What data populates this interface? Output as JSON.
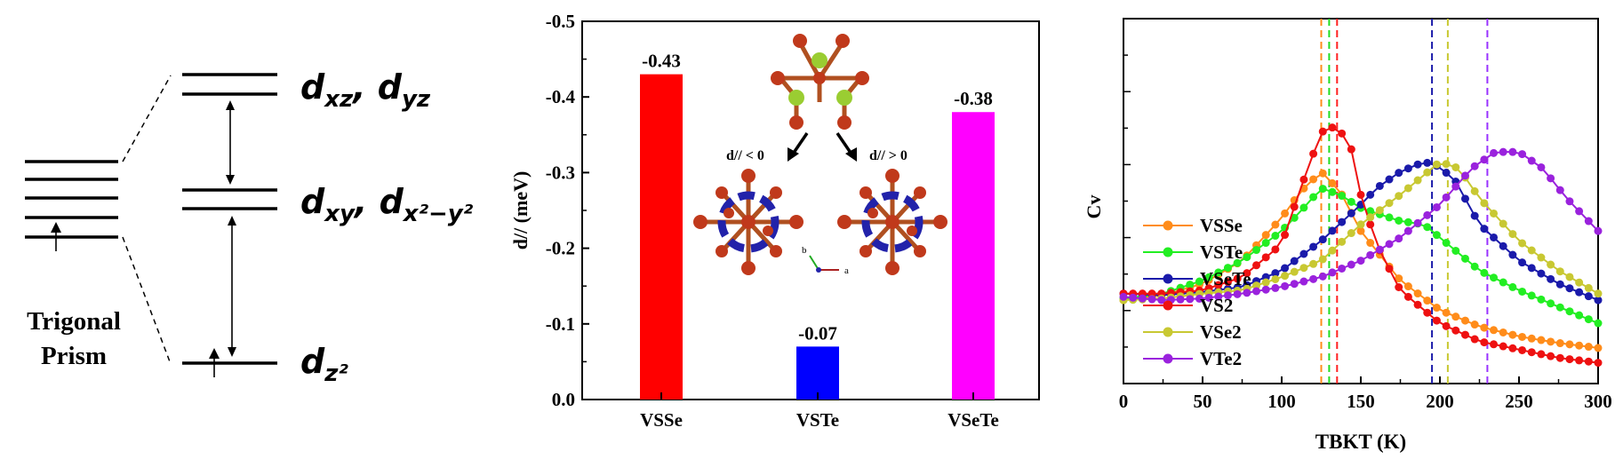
{
  "panel_a": {
    "prism_label_1": "Trigonal",
    "prism_label_2": "Prism",
    "level_labels": [
      {
        "base": "d",
        "sub1": "xz",
        "sep": ", ",
        "base2": "d",
        "sub2": "yz"
      },
      {
        "base": "d",
        "sub1": "xy",
        "sep": ", ",
        "base2": "d",
        "sub2": "x²−y²"
      },
      {
        "base": "d",
        "sub1": "z²",
        "sep": "",
        "base2": "",
        "sub2": ""
      }
    ]
  },
  "panel_b_inset": {
    "left_label": "d// < 0",
    "right_label": "d// > 0",
    "axis_b": "b",
    "axis_a": "a"
  },
  "chart_data": [
    {
      "type": "bar",
      "categories": [
        "VSSe",
        "VSTe",
        "VSeTe"
      ],
      "values": [
        -0.43,
        -0.07,
        -0.38
      ],
      "data_labels": [
        "-0.43",
        "-0.07",
        "-0.38"
      ],
      "colors": [
        "#ff0000",
        "#0000ff",
        "#ff00ff"
      ],
      "ylabel": "d// (meV)",
      "ylim": [
        0.0,
        -0.5
      ],
      "yticks": [
        "0.0",
        "-0.1",
        "-0.2",
        "-0.3",
        "-0.4",
        "-0.5"
      ],
      "axis_inverted": true
    },
    {
      "type": "line",
      "xlabel": "TBKT (K)",
      "ylabel": "Cv",
      "xlim": [
        0,
        300
      ],
      "xticks": [
        "0",
        "50",
        "100",
        "150",
        "200",
        "250",
        "300"
      ],
      "legend_position": "left",
      "vlines": [
        {
          "x": 125,
          "color": "#ff8c1a"
        },
        {
          "x": 130,
          "color": "#22dd22"
        },
        {
          "x": 135,
          "color": "#ff2222"
        },
        {
          "x": 195,
          "color": "#1a1aaa"
        },
        {
          "x": 205,
          "color": "#c8c832"
        },
        {
          "x": 230,
          "color": "#9933ff"
        }
      ],
      "series": [
        {
          "name": "VSSe",
          "color": "#ff8c1a",
          "x": [
            0,
            25,
            50,
            75,
            100,
            112,
            125,
            137,
            150,
            175,
            200,
            225,
            250,
            275,
            300
          ],
          "y": [
            0.21,
            0.225,
            0.26,
            0.33,
            0.46,
            0.54,
            0.6,
            0.54,
            0.42,
            0.27,
            0.18,
            0.13,
            0.1,
            0.08,
            0.065
          ]
        },
        {
          "name": "VSTe",
          "color": "#22ee22",
          "x": [
            0,
            25,
            50,
            75,
            100,
            112,
            125,
            137,
            150,
            175,
            190,
            200,
            225,
            250,
            275,
            300
          ],
          "y": [
            0.215,
            0.23,
            0.27,
            0.33,
            0.42,
            0.48,
            0.55,
            0.53,
            0.49,
            0.45,
            0.44,
            0.4,
            0.3,
            0.24,
            0.19,
            0.14
          ]
        },
        {
          "name": "VSeTe",
          "color": "#1a1aaa",
          "x": [
            0,
            25,
            50,
            75,
            100,
            125,
            150,
            160,
            175,
            190,
            200,
            210,
            225,
            250,
            275,
            300
          ],
          "y": [
            0.23,
            0.225,
            0.235,
            0.25,
            0.3,
            0.39,
            0.5,
            0.55,
            0.6,
            0.63,
            0.615,
            0.57,
            0.44,
            0.33,
            0.26,
            0.21
          ]
        },
        {
          "name": "VS2",
          "color": "#ee1111",
          "x": [
            0,
            25,
            50,
            75,
            100,
            112,
            125,
            135,
            145,
            150,
            160,
            175,
            200,
            225,
            250,
            275,
            300
          ],
          "y": [
            0.23,
            0.23,
            0.24,
            0.28,
            0.38,
            0.55,
            0.72,
            0.74,
            0.66,
            0.53,
            0.38,
            0.24,
            0.14,
            0.085,
            0.06,
            0.035,
            0.02
          ]
        },
        {
          "name": "VSe2",
          "color": "#c8c832",
          "x": [
            0,
            25,
            50,
            75,
            100,
            125,
            150,
            175,
            200,
            212,
            225,
            250,
            275,
            300
          ],
          "y": [
            0.21,
            0.215,
            0.23,
            0.24,
            0.28,
            0.33,
            0.44,
            0.53,
            0.63,
            0.61,
            0.52,
            0.39,
            0.3,
            0.23
          ]
        },
        {
          "name": "VTe2",
          "color": "#9a22dd",
          "x": [
            0,
            25,
            50,
            75,
            100,
            125,
            150,
            175,
            200,
            220,
            235,
            250,
            265,
            280,
            300
          ],
          "y": [
            0.22,
            0.21,
            0.215,
            0.23,
            0.25,
            0.28,
            0.33,
            0.4,
            0.5,
            0.61,
            0.66,
            0.66,
            0.61,
            0.52,
            0.42
          ]
        }
      ]
    }
  ]
}
